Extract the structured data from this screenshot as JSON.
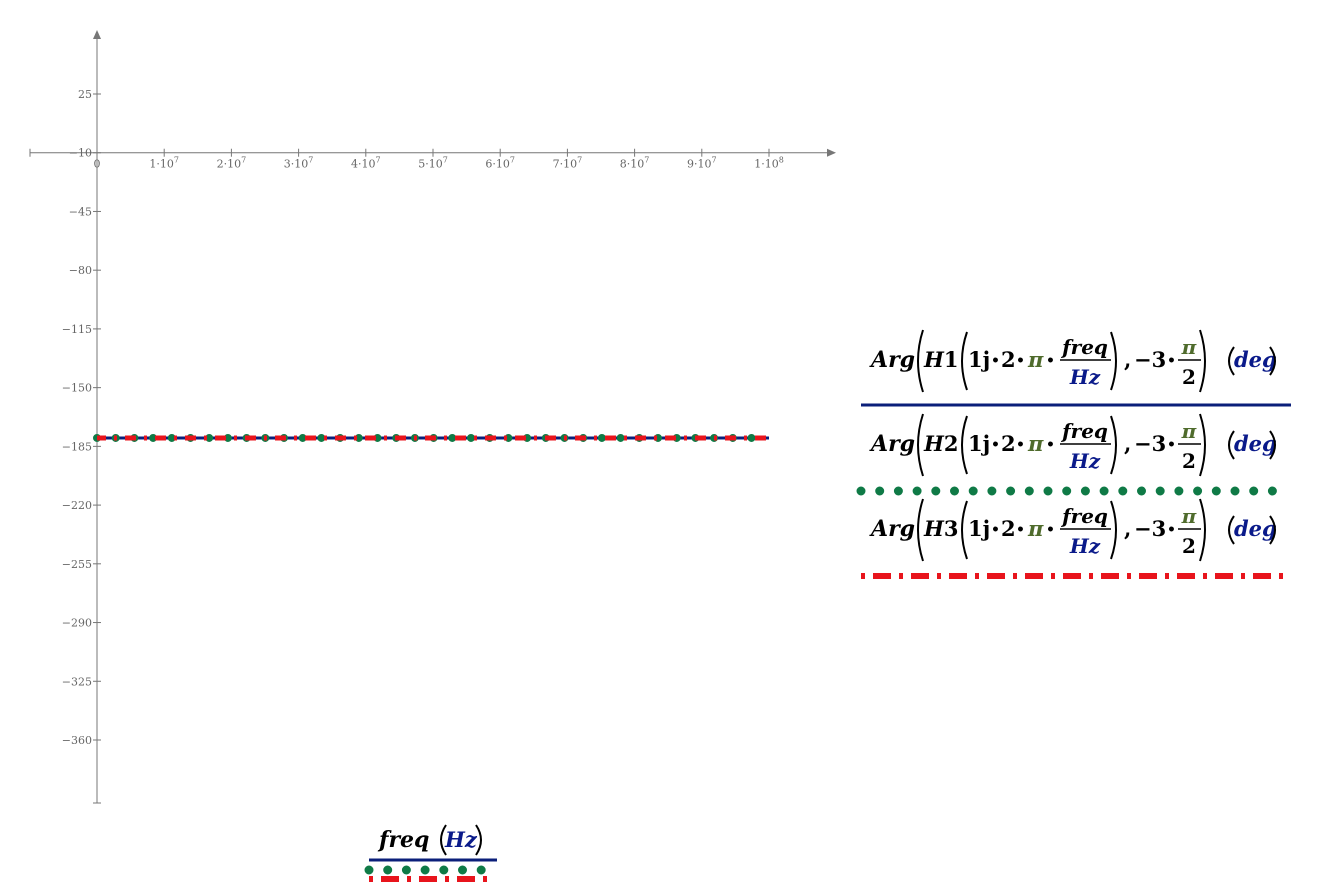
{
  "chart_data": {
    "type": "line",
    "x_range": [
      0,
      100000000
    ],
    "x_ticks": [
      "0",
      "1·10",
      "2·10",
      "3·10",
      "4·10",
      "5·10",
      "6·10",
      "7·10",
      "8·10",
      "9·10",
      "1·10"
    ],
    "x_tick_exponents": [
      "",
      "7",
      "7",
      "7",
      "7",
      "7",
      "7",
      "7",
      "7",
      "7",
      "8"
    ],
    "y_range": [
      -395,
      45
    ],
    "y_ticks": [
      "25",
      "−10",
      "−45",
      "−80",
      "−115",
      "−150",
      "−185",
      "−220",
      "−255",
      "−290",
      "−325",
      "−360"
    ],
    "grid": false,
    "series": [
      {
        "name": "Arg(H1(1j·2·π·freq/Hz), −3·π/2) (deg)",
        "color": "#0b1f7a",
        "style": "solid",
        "x": [
          0,
          100000000
        ],
        "y": [
          -180,
          -180
        ]
      },
      {
        "name": "Arg(H2(1j·2·π·freq/Hz), −3·π/2) (deg)",
        "color": "#0f7a46",
        "style": "dotted",
        "x": [
          0,
          100000000
        ],
        "y": [
          -180,
          -180
        ]
      },
      {
        "name": "Arg(H3(1j·2·π·freq/Hz), −3·π/2) (deg)",
        "color": "#e8141c",
        "style": "dash-dot",
        "x": [
          0,
          100000000
        ],
        "y": [
          -180,
          -180
        ]
      }
    ],
    "xlabel": {
      "var": "freq",
      "unit": "Hz"
    },
    "legend_placement": "right",
    "legend_expr": {
      "fn": "Arg",
      "names": [
        "H1",
        "H2",
        "H3"
      ],
      "one_j": "1j",
      "dot": "•",
      "two": "2",
      "pi": "π",
      "frac_num": "freq",
      "frac_den": "Hz",
      "comma": ",",
      "minus_three": "−3",
      "half_den": "2",
      "unit": "deg"
    }
  },
  "colors": {
    "axis": "#777777",
    "number": "#000000",
    "pi": "#4f6b2c",
    "unit": "#0a1a8a"
  }
}
